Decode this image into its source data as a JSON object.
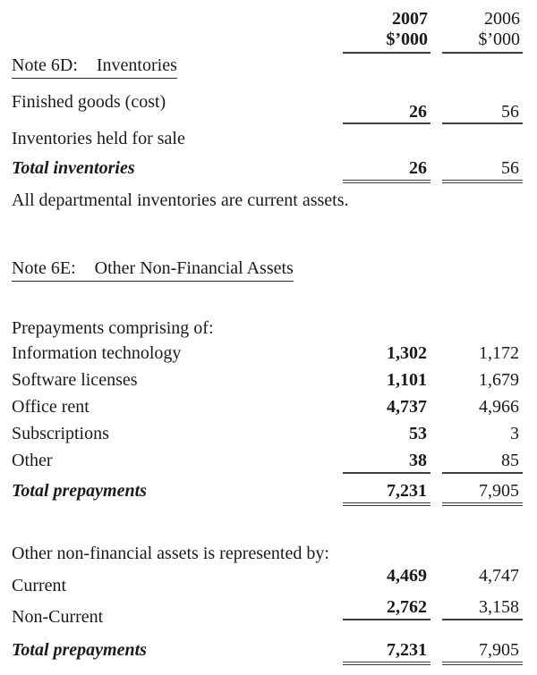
{
  "columns": {
    "year1": "2007",
    "year1_unit": "$’000",
    "year2": "2006",
    "year2_unit": "$’000"
  },
  "note6d": {
    "label": "Note 6D:",
    "title": "Inventories",
    "rows": [
      {
        "label": "Finished goods (cost)",
        "v2007": "26",
        "v2006": "56"
      },
      {
        "label": "Inventories held for sale"
      },
      {
        "label": "Total inventories",
        "v2007": "26",
        "v2006": "56"
      }
    ],
    "footnote": "All departmental inventories are current assets."
  },
  "note6e": {
    "label": "Note 6E:",
    "title": "Other Non-Financial Assets",
    "intro": "Prepayments comprising of:",
    "rows": [
      {
        "label": "Information technology",
        "v2007": "1,302",
        "v2006": "1,172"
      },
      {
        "label": "Software licenses",
        "v2007": "1,101",
        "v2006": "1,679"
      },
      {
        "label": "Office rent",
        "v2007": "4,737",
        "v2006": "4,966"
      },
      {
        "label": "Subscriptions",
        "v2007": "53",
        "v2006": "3"
      },
      {
        "label": "Other",
        "v2007": "38",
        "v2006": "85"
      },
      {
        "label": "Total prepayments",
        "v2007": "7,231",
        "v2006": "7,905"
      }
    ],
    "represented_intro": "Other non-financial assets is represented by:",
    "represented_rows": [
      {
        "label": "Current",
        "v2007": "4,469",
        "v2006": "4,747"
      },
      {
        "label": "Non-Current",
        "v2007": "2,762",
        "v2006": "3,158"
      },
      {
        "label": "Total prepayments",
        "v2007": "7,231",
        "v2006": "7,905"
      }
    ]
  }
}
